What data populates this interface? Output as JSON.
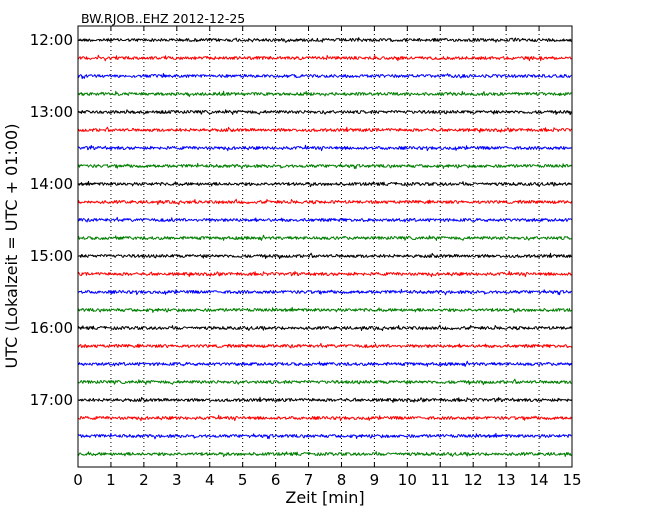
{
  "chart_data": {
    "type": "line",
    "title": "BW.RJOB..EHZ 2012-12-25",
    "xlabel": "Zeit  [min]",
    "ylabel": "UTC (Lokalzeit = UTC + 01:00)",
    "xlim": [
      0,
      15
    ],
    "x_ticks": [
      0,
      1,
      2,
      3,
      4,
      5,
      6,
      7,
      8,
      9,
      10,
      11,
      12,
      13,
      14,
      15
    ],
    "y_start_hour": 12,
    "row_minutes": 15,
    "row_count": 24,
    "y_tick_labels": [
      "12:00",
      "13:00",
      "14:00",
      "15:00",
      "16:00",
      "17:00"
    ],
    "grid": {
      "vertical": "dotted",
      "horizontal": "none"
    },
    "series_colors": [
      "#000000",
      "#ff0000",
      "#0000ff",
      "#007f00"
    ],
    "traces": [
      {
        "start": "12:00",
        "color": "#000000"
      },
      {
        "start": "12:15",
        "color": "#ff0000"
      },
      {
        "start": "12:30",
        "color": "#0000ff"
      },
      {
        "start": "12:45",
        "color": "#007f00"
      },
      {
        "start": "13:00",
        "color": "#000000"
      },
      {
        "start": "13:15",
        "color": "#ff0000"
      },
      {
        "start": "13:30",
        "color": "#0000ff"
      },
      {
        "start": "13:45",
        "color": "#007f00"
      },
      {
        "start": "14:00",
        "color": "#000000"
      },
      {
        "start": "14:15",
        "color": "#ff0000"
      },
      {
        "start": "14:30",
        "color": "#0000ff"
      },
      {
        "start": "14:45",
        "color": "#007f00"
      },
      {
        "start": "15:00",
        "color": "#000000"
      },
      {
        "start": "15:15",
        "color": "#ff0000"
      },
      {
        "start": "15:30",
        "color": "#0000ff"
      },
      {
        "start": "15:45",
        "color": "#007f00"
      },
      {
        "start": "16:00",
        "color": "#000000"
      },
      {
        "start": "16:15",
        "color": "#ff0000"
      },
      {
        "start": "16:30",
        "color": "#0000ff"
      },
      {
        "start": "16:45",
        "color": "#007f00"
      },
      {
        "start": "17:00",
        "color": "#000000"
      },
      {
        "start": "17:15",
        "color": "#ff0000"
      },
      {
        "start": "17:30",
        "color": "#0000ff"
      },
      {
        "start": "17:45",
        "color": "#007f00"
      }
    ]
  }
}
